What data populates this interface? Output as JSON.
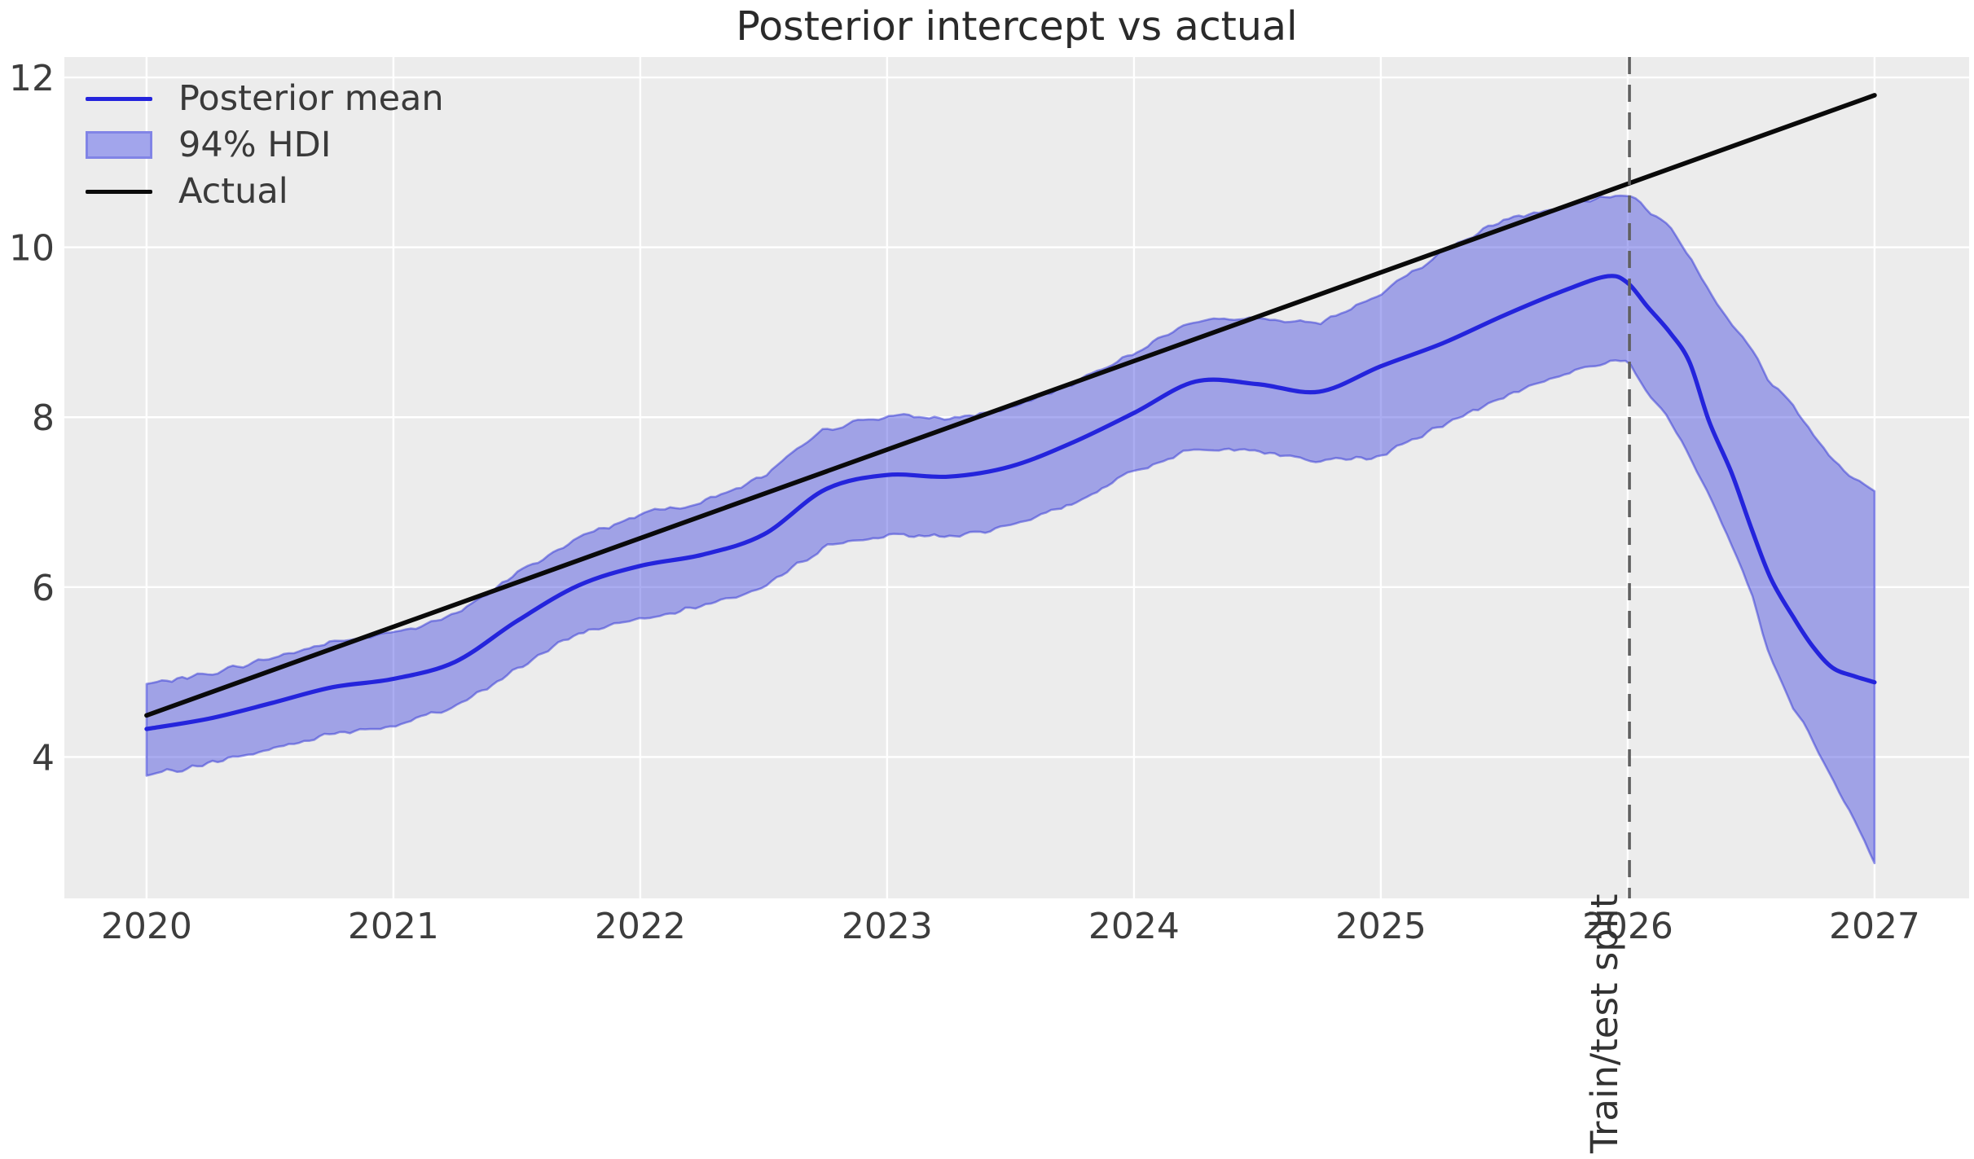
{
  "chart_data": {
    "type": "line",
    "title": "Posterior intercept vs actual",
    "xlabel": "",
    "ylabel": "",
    "grid": true,
    "legend_position": "upper left",
    "xlim": [
      2019.667,
      2027.383
    ],
    "ylim": [
      2.336,
      12.24
    ],
    "x_ticks": {
      "values": [
        2020,
        2021,
        2022,
        2023,
        2024,
        2025,
        2026,
        2027
      ],
      "labels": [
        "2020",
        "2021",
        "2022",
        "2023",
        "2024",
        "2025",
        "2026",
        "2027"
      ]
    },
    "y_ticks": {
      "values": [
        4,
        6,
        8,
        10,
        12
      ],
      "labels": [
        "4",
        "6",
        "8",
        "10",
        "12"
      ]
    },
    "legend": [
      {
        "label": "Posterior mean",
        "kind": "line",
        "color": "#2424dc"
      },
      {
        "label": "94% HDI",
        "kind": "patch",
        "color": "#a2a5ec"
      },
      {
        "label": "Actual",
        "kind": "line",
        "color": "#0a0a0a"
      }
    ],
    "split": {
      "x": 2026.007,
      "label": "Train/test split"
    },
    "series": {
      "x": [
        2020.0,
        2020.25,
        2020.5,
        2020.75,
        2021.0,
        2021.25,
        2021.5,
        2021.75,
        2022.0,
        2022.25,
        2022.5,
        2022.75,
        2023.0,
        2023.25,
        2023.5,
        2023.75,
        2024.0,
        2024.25,
        2024.5,
        2024.75,
        2025.0,
        2025.25,
        2025.5,
        2025.75,
        2025.92,
        2026.0,
        2026.08,
        2026.17,
        2026.25,
        2026.33,
        2026.42,
        2026.5,
        2026.58,
        2026.67,
        2026.75,
        2026.83,
        2026.92,
        2027.0
      ],
      "posterior_mean": [
        4.33,
        4.45,
        4.63,
        4.82,
        4.92,
        5.12,
        5.6,
        6.02,
        6.25,
        6.38,
        6.62,
        7.15,
        7.32,
        7.3,
        7.42,
        7.7,
        8.05,
        8.42,
        8.39,
        8.3,
        8.6,
        8.87,
        9.2,
        9.5,
        9.66,
        9.58,
        9.3,
        9.0,
        8.65,
        7.95,
        7.35,
        6.7,
        6.1,
        5.65,
        5.3,
        5.05,
        4.95,
        4.88
      ],
      "hdi_lower": [
        3.78,
        3.92,
        4.09,
        4.28,
        4.37,
        4.58,
        5.04,
        5.46,
        5.64,
        5.78,
        5.99,
        6.49,
        6.61,
        6.6,
        6.71,
        6.98,
        7.36,
        7.65,
        7.6,
        7.48,
        7.55,
        7.9,
        8.25,
        8.52,
        8.65,
        8.65,
        8.3,
        7.95,
        7.55,
        7.1,
        6.5,
        5.95,
        5.15,
        4.6,
        4.2,
        3.75,
        3.25,
        2.75
      ],
      "hdi_upper": [
        4.86,
        4.98,
        5.16,
        5.35,
        5.46,
        5.67,
        6.16,
        6.58,
        6.86,
        7.0,
        7.3,
        7.86,
        8.02,
        7.98,
        8.1,
        8.4,
        8.76,
        9.15,
        9.15,
        9.1,
        9.46,
        9.95,
        10.33,
        10.5,
        10.6,
        10.62,
        10.45,
        10.25,
        9.9,
        9.5,
        9.1,
        8.8,
        8.4,
        8.15,
        7.8,
        7.5,
        7.28,
        7.13
      ],
      "actual": {
        "x": [
          2020.0,
          2027.0
        ],
        "y": [
          4.49,
          11.79
        ]
      }
    },
    "colors": {
      "plot_background": "#ececec",
      "gridline": "#ffffff",
      "posterior_mean": "#2424dc",
      "hdi_fill": "rgba(55,60,222,0.42)",
      "hdi_edge": "rgba(48,52,214,0.5)",
      "actual": "#0a0a0a",
      "split_line": "#606060",
      "tick_text": "#3d3d3d",
      "title_text": "#2a2a2a"
    }
  }
}
